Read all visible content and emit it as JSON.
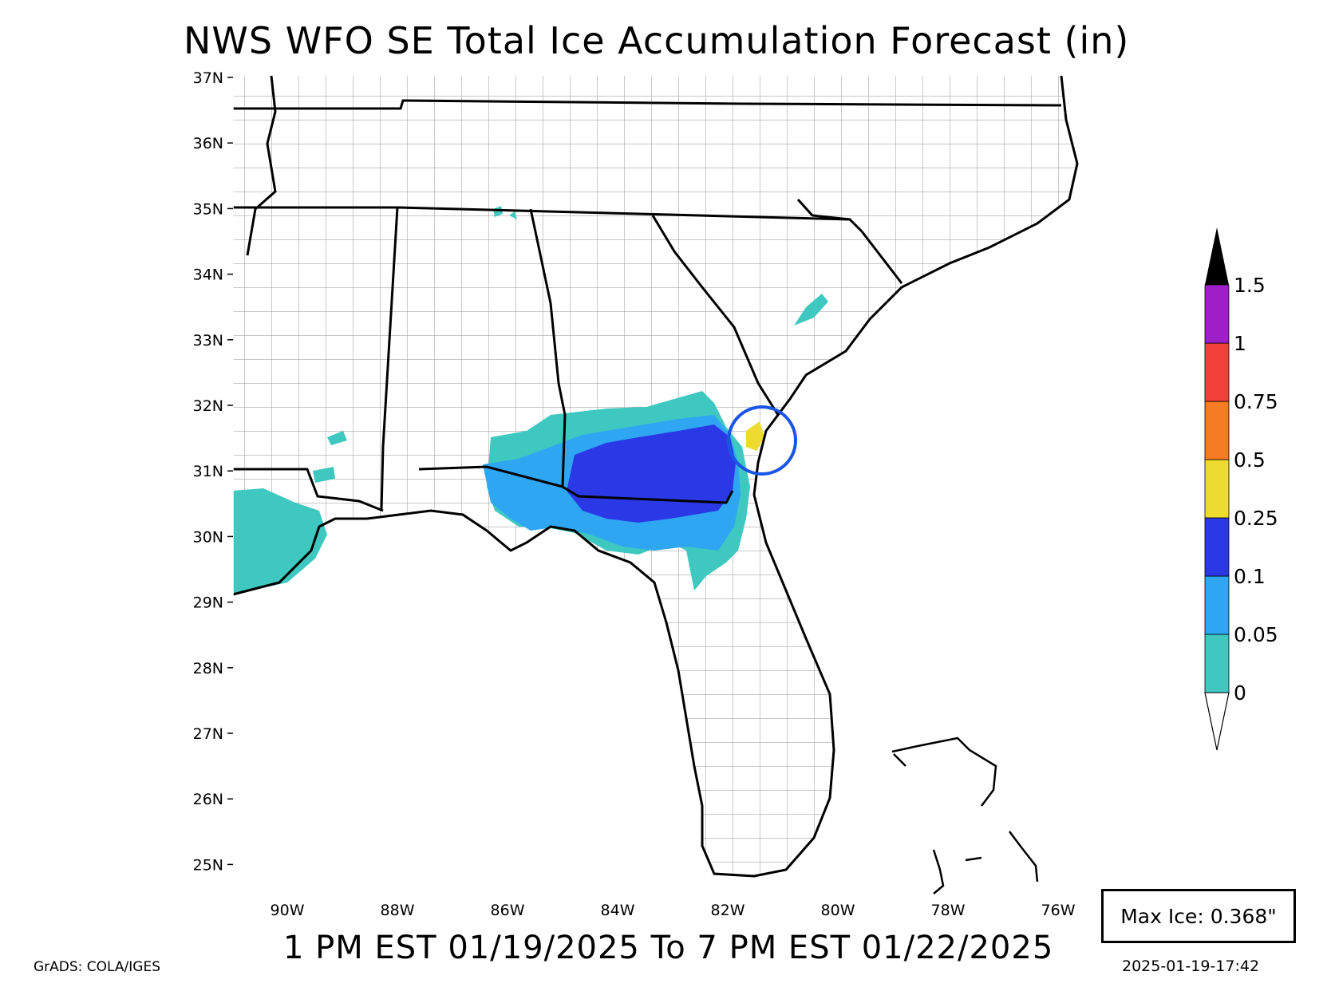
{
  "title": "NWS WFO SE Total Ice Accumulation Forecast (in)",
  "period": "1 PM EST 01/19/2025 To 7 PM EST 01/22/2025",
  "max_ice": "Max Ice: 0.368\"",
  "timestamp": "2025-01-19-17:42",
  "credit": "GrADS: COLA/IGES",
  "lat_ticks": [
    "37N",
    "36N",
    "35N",
    "34N",
    "33N",
    "32N",
    "31N",
    "30N",
    "29N",
    "28N",
    "27N",
    "26N",
    "25N"
  ],
  "lon_ticks": [
    "90W",
    "88W",
    "86W",
    "84W",
    "82W",
    "80W",
    "78W",
    "76W"
  ],
  "colorbar": {
    "labels": [
      "0",
      "0.05",
      "0.1",
      "0.25",
      "0.5",
      "0.75",
      "1",
      "1.5"
    ],
    "colors": [
      "#3ec8c0",
      "#2ea6f2",
      "#2a38e6",
      "#eedb30",
      "#f57c24",
      "#f0423a",
      "#9e1fc8",
      "#000000"
    ]
  },
  "colors": {
    "land": "#ffffff",
    "county_lines": "#a8a8a8",
    "state_lines": "#000000",
    "highlight_circle": "#1a55e6"
  }
}
